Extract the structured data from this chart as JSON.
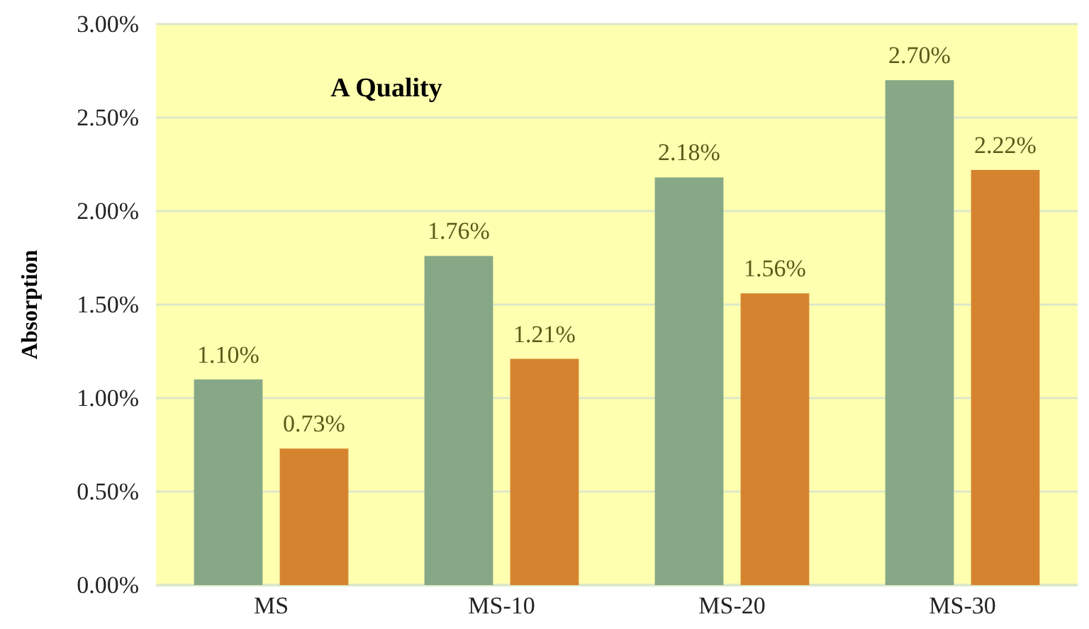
{
  "chart_data": {
    "type": "bar",
    "title": "A Quality",
    "ylabel": "Absorption",
    "categories": [
      "MS",
      "MS-10",
      "MS-20",
      "MS-30"
    ],
    "series": [
      {
        "color": "#86a886",
        "values": [
          1.1,
          1.76,
          2.18,
          2.7
        ],
        "value_labels": [
          "1.10%",
          "1.76%",
          "2.18%",
          "2.70%"
        ]
      },
      {
        "color": "#d6832f",
        "values": [
          0.73,
          1.21,
          1.56,
          2.22
        ],
        "value_labels": [
          "0.73%",
          "1.21%",
          "1.56%",
          "2.22%"
        ]
      }
    ],
    "ylim": [
      0,
      3
    ],
    "yticks": [
      {
        "value": 0,
        "label": "0.00%"
      },
      {
        "value": 0.5,
        "label": "0.50%"
      },
      {
        "value": 1,
        "label": "1.00%"
      },
      {
        "value": 1.5,
        "label": "1.50%"
      },
      {
        "value": 2,
        "label": "2.00%"
      },
      {
        "value": 2.5,
        "label": "2.50%"
      },
      {
        "value": 3,
        "label": "3.00%"
      }
    ],
    "grid": "y"
  }
}
